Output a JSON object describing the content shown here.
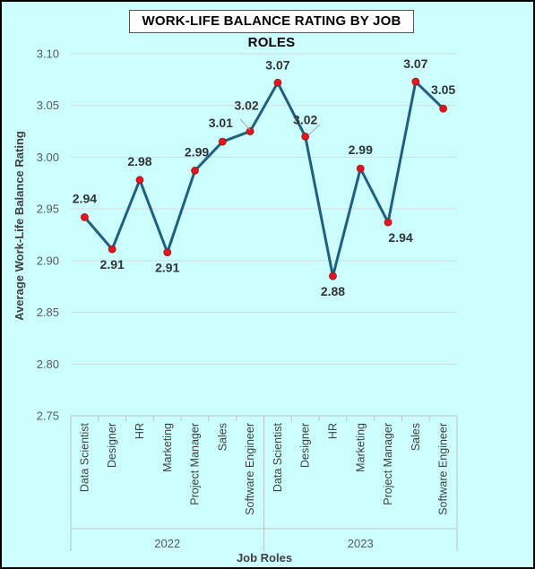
{
  "chart_data": {
    "type": "line",
    "title": "WORK-LIFE BALANCE RATING BY JOB ROLES",
    "xlabel": "Job Roles",
    "ylabel": "Average Work-Life Balance Rating",
    "ylim": [
      2.75,
      3.1
    ],
    "yticks": [
      "2.75",
      "2.80",
      "2.85",
      "2.90",
      "2.95",
      "3.00",
      "3.05",
      "3.10"
    ],
    "grid": true,
    "groups": [
      {
        "name": "2022",
        "categories": [
          "Data Scientist",
          "Designer",
          "HR",
          "Marketing",
          "Project Manager",
          "Sales",
          "Software Engineer"
        ]
      },
      {
        "name": "2023",
        "categories": [
          "Data Scientist",
          "Designer",
          "HR",
          "Marketing",
          "Project Manager",
          "Sales",
          "Software Engineer"
        ]
      }
    ],
    "values": [
      2.942,
      2.911,
      2.978,
      2.908,
      2.987,
      3.015,
      3.025,
      3.072,
      3.02,
      2.885,
      2.989,
      2.937,
      3.073,
      3.047
    ],
    "data_labels": [
      "2.94",
      "2.91",
      "2.98",
      "2.91",
      "2.99",
      "3.01",
      "3.02",
      "3.07",
      "3.02",
      "2.88",
      "2.99",
      "2.94",
      "3.07",
      "3.05"
    ],
    "colors": {
      "line": "#1f5f7f",
      "marker": "#e8141c",
      "marker_edge": "#8b1a1a",
      "grid": "#d9d9d9",
      "background": "#ccffff"
    }
  }
}
